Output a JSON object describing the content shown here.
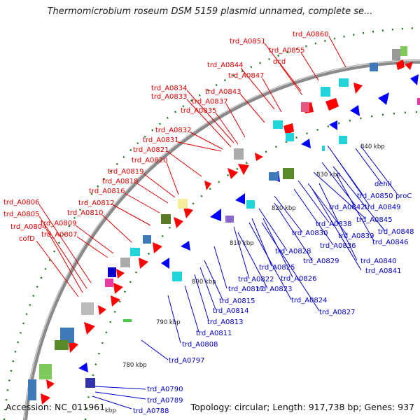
{
  "title": "Thermomicrobium roseum DSM 5159 plasmid unnamed, complete se...",
  "footer": {
    "accession": "Accession: NC_011961",
    "summary": "Topology: circular; Length: 917,738 bp; Genes: 937"
  },
  "colors": {
    "backbone": "#888888",
    "forward_label": "#e00000",
    "reverse_label": "#0000cc",
    "forward_feature": "#ff0000",
    "reverse_feature": "#0000ff",
    "gc_dots": "#1a7a1a"
  },
  "ticks": [
    "840 kbp",
    "830 kbp",
    "820 kbp",
    "810 kbp",
    "800 kbp",
    "790 kbp",
    "780 kbp",
    "kbp"
  ],
  "forward_labels": [
    "trd_A0860",
    "trd_A0851",
    "trd_A0855",
    "dcd",
    "trd_A0844",
    "trd_A0847",
    "trd_A0843",
    "trd_A0837",
    "trd_A0834",
    "trd_A0833",
    "trd_A0835",
    "trd_A0832",
    "trd_A0831",
    "trd_A0821",
    "trd_A0820",
    "trd_A0819",
    "trd_A0818",
    "trd_A0816",
    "trd_A0812",
    "trd_A0810",
    "trd_A0806",
    "trd_A0805",
    "trd_A0809",
    "trd_A0804",
    "trd_A0807",
    "cofD"
  ],
  "reverse_labels": [
    "dehII",
    "trd_A0850",
    "proC",
    "trd_A0842",
    "trd_A0849",
    "trd_A0845",
    "trd_A0838",
    "trd_A0848",
    "trd_A0830",
    "trd_A0839",
    "trd_A0846",
    "trd_A0836",
    "trd_A0828",
    "trd_A0829",
    "trd_A0840",
    "trd_A0841",
    "trd_A0825",
    "trd_A0822",
    "trd_A0826",
    "trd_A0823",
    "trd_A0817",
    "trd_A0824",
    "trd_A0815",
    "trd_A0827",
    "trd_A0814",
    "trd_A0813",
    "trd_A0811",
    "trd_A0808",
    "trd_A0797",
    "trd_A0790",
    "trd_A0789",
    "trd_A0788"
  ]
}
